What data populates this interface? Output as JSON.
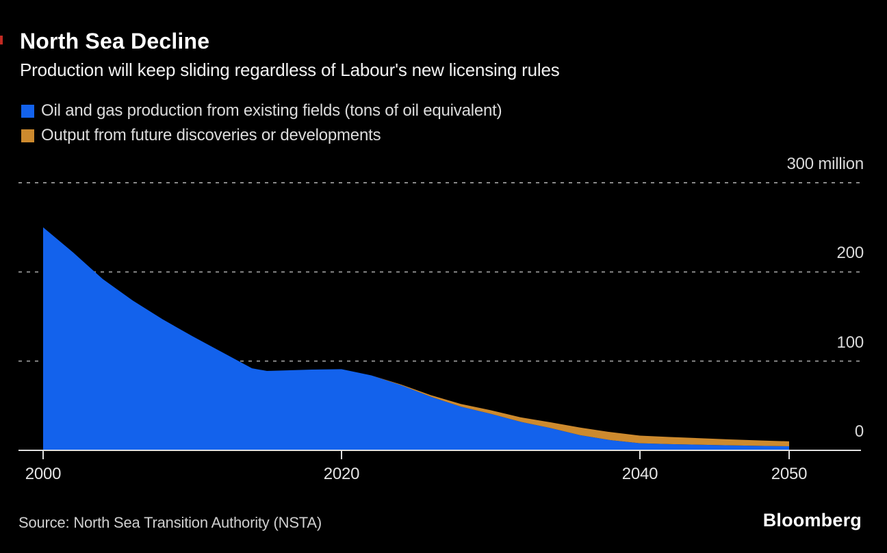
{
  "colors": {
    "background": "#000000",
    "existing_blue": "#1362ec",
    "future_orange": "#cd8a2e",
    "gridline": "#8a8a8a",
    "axis": "#e0e0e0"
  },
  "header": {
    "title": "North Sea Decline",
    "subtitle": "Production will keep sliding regardless of Labour's new licensing rules"
  },
  "legend": {
    "items": [
      {
        "label": "Oil and gas production from existing fields (tons of oil equivalent)",
        "color": "#1362ec"
      },
      {
        "label": "Output from future discoveries or developments",
        "color": "#cd8a2e"
      }
    ]
  },
  "chart_data": {
    "type": "area",
    "stacked": true,
    "title": "North Sea Decline",
    "xlabel": "",
    "ylabel": "tons of oil equivalent",
    "ylim": [
      0,
      300
    ],
    "grid": "dashed-horizontal",
    "legend_position": "top-left",
    "x": [
      2000,
      2002,
      2004,
      2006,
      2008,
      2010,
      2012,
      2014,
      2015,
      2016,
      2018,
      2020,
      2022,
      2024,
      2026,
      2028,
      2030,
      2032,
      2034,
      2036,
      2038,
      2040,
      2042,
      2044,
      2046,
      2048,
      2050
    ],
    "series": [
      {
        "name": "Oil and gas production from existing fields (tons of oil equivalent)",
        "color": "#1362ec",
        "values": [
          250,
          222,
          192,
          168,
          147,
          128,
          110,
          92,
          89,
          89.5,
          90.5,
          91,
          84,
          73,
          60,
          49,
          41,
          32,
          25,
          17,
          11.5,
          8,
          7,
          6.3,
          5.7,
          5.1,
          4.6
        ]
      },
      {
        "name": "Output from future discoveries or developments",
        "color": "#cd8a2e",
        "values": [
          0,
          0,
          0,
          0,
          0,
          0,
          0,
          0,
          0,
          0,
          0,
          0,
          0,
          0.8,
          1.8,
          3,
          4,
          5,
          6.5,
          8.5,
          9,
          8.5,
          8,
          7.3,
          6.6,
          6,
          5.5
        ]
      }
    ],
    "yticks": [
      {
        "value": 300,
        "label": "300 million"
      },
      {
        "value": 200,
        "label": "200"
      },
      {
        "value": 100,
        "label": "100"
      },
      {
        "value": 0,
        "label": "0"
      }
    ],
    "xticks": [
      {
        "value": 2000,
        "label": "2000"
      },
      {
        "value": 2020,
        "label": "2020"
      },
      {
        "value": 2040,
        "label": "2040"
      },
      {
        "value": 2050,
        "label": "2050"
      }
    ]
  },
  "footer": {
    "source": "Source: North Sea Transition Authority (NSTA)",
    "brand": "Bloomberg"
  }
}
